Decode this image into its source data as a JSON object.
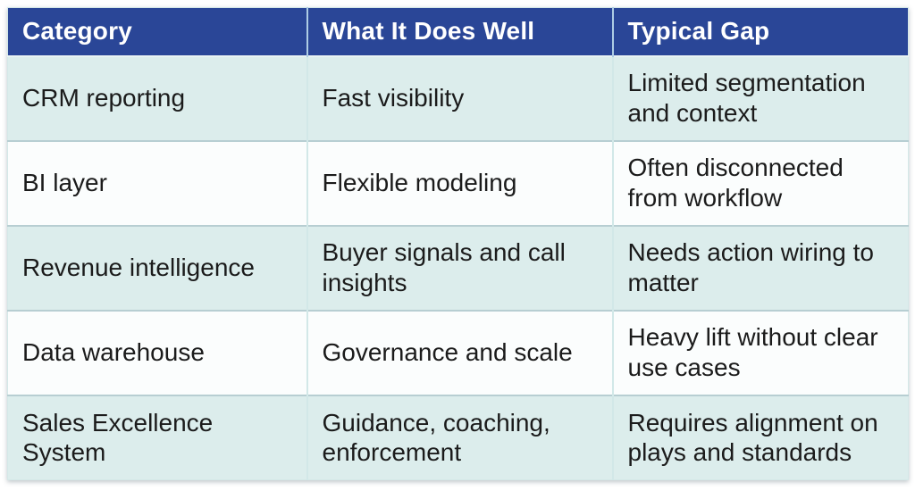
{
  "colors": {
    "header_bg": "#2a4697",
    "header_text": "#ffffff",
    "row_alt_bg": "#dcedec",
    "row_bg": "#fbfdfd",
    "text": "#1b1b1b",
    "row_divider": "#b7ced2",
    "header_divider": "#aecde5",
    "column_divider": "#d2e8e8",
    "outer_border": "#d5e8e8",
    "header_bottom_line": "#e9f3f3"
  },
  "chart_data": {
    "type": "table",
    "columns": [
      "Category",
      "What It Does Well",
      "Typical Gap"
    ],
    "rows": [
      [
        "CRM reporting",
        "Fast visibility",
        "Limited segmentation and context"
      ],
      [
        "BI layer",
        "Flexible modeling",
        "Often disconnected from workflow"
      ],
      [
        "Revenue intelligence",
        "Buyer signals and call insights",
        "Needs action wiring to matter"
      ],
      [
        "Data warehouse",
        "Governance and scale",
        "Heavy lift without clear use cases"
      ],
      [
        "Sales Excellence System",
        "Guidance, coaching, enforcement",
        "Requires alignment on plays and standards"
      ]
    ]
  }
}
